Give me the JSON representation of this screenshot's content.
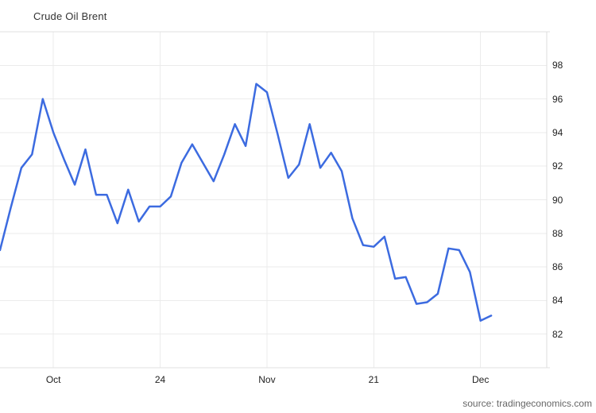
{
  "header": {
    "title": "Crude Oil Brent"
  },
  "footer": {
    "source": "source: tradingeconomics.com"
  },
  "colors": {
    "line": "#3c6be0",
    "grid": "#ebebeb",
    "border": "#e0e0e0",
    "axis": "#dcdcdc",
    "label": "#222222",
    "title": "#333333",
    "source": "#666666",
    "background": "#ffffff"
  },
  "chart_data": {
    "type": "line",
    "title": "Crude Oil Brent",
    "xlabel": "",
    "ylabel": "",
    "grid": true,
    "legend": "none",
    "y_axis_side": "right",
    "ylim": [
      80,
      100
    ],
    "y_ticks": [
      82,
      84,
      86,
      88,
      90,
      92,
      94,
      96,
      98
    ],
    "x_index_range": [
      0,
      51.2
    ],
    "x_ticks": [
      {
        "index": 5,
        "label": "Oct"
      },
      {
        "index": 15,
        "label": "24"
      },
      {
        "index": 25,
        "label": "Nov"
      },
      {
        "index": 35,
        "label": "21"
      },
      {
        "index": 45,
        "label": "Dec"
      }
    ],
    "series": [
      {
        "name": "Crude Oil Brent",
        "color": "#3c6be0",
        "values": [
          87.0,
          89.5,
          91.9,
          92.7,
          96.0,
          94.0,
          92.4,
          90.9,
          93.0,
          90.3,
          90.3,
          88.6,
          90.6,
          88.7,
          89.6,
          89.6,
          90.2,
          92.2,
          93.3,
          92.2,
          91.1,
          92.7,
          94.5,
          93.2,
          96.9,
          96.4,
          93.9,
          91.3,
          92.1,
          94.5,
          91.9,
          92.8,
          91.7,
          88.9,
          87.3,
          87.2,
          87.8,
          85.3,
          85.4,
          83.8,
          83.9,
          84.4,
          87.1,
          87.0,
          85.7,
          82.8,
          83.1
        ]
      }
    ]
  }
}
